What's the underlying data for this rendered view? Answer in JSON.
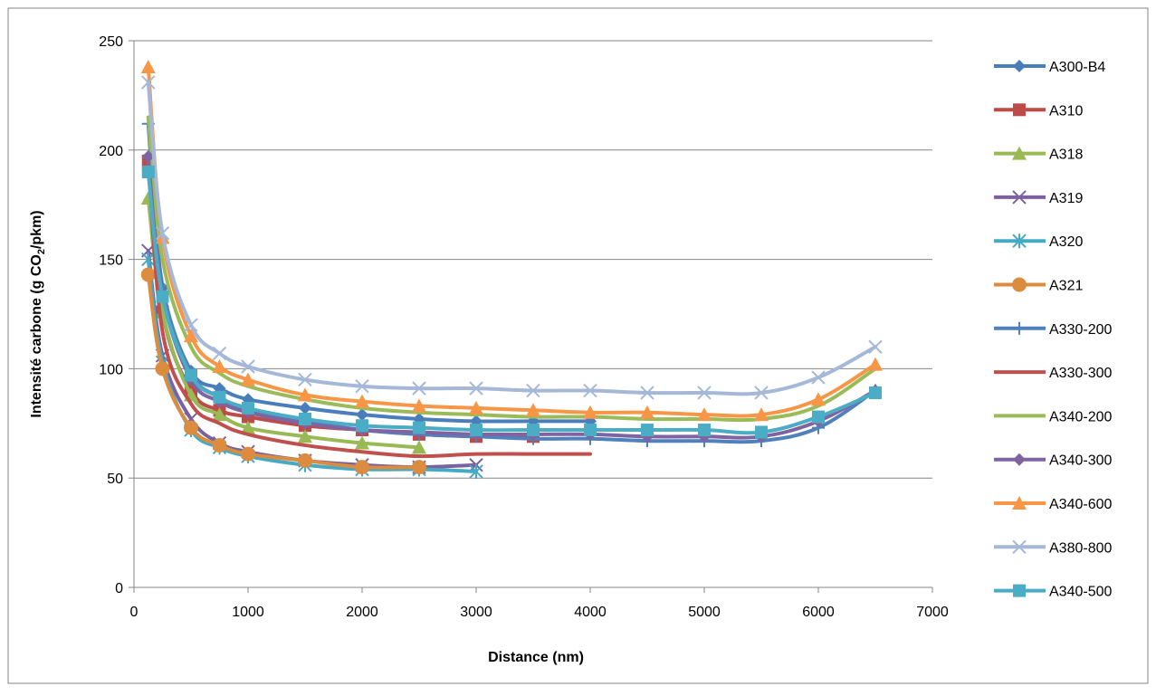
{
  "chart_data": {
    "type": "line",
    "title": "",
    "xlabel": "Distance (nm)",
    "ylabel_main": "Intensité carbone (g CO",
    "ylabel_sub": "2",
    "ylabel_tail": "/pkm)",
    "xlim": [
      0,
      7000
    ],
    "ylim": [
      0,
      250
    ],
    "x_ticks": [
      "0",
      "1000",
      "2000",
      "3000",
      "4000",
      "5000",
      "6000",
      "7000"
    ],
    "y_ticks": [
      "0",
      "50",
      "100",
      "150",
      "200",
      "250"
    ],
    "grid": "horizontal",
    "legend_position": "right",
    "series": [
      {
        "name": "A300-B4",
        "color": "#4a7ebb",
        "marker": "diamond",
        "x": [
          125,
          250,
          500,
          750,
          1000,
          1500,
          2000,
          2500,
          3000,
          3500,
          4000
        ],
        "y": [
          195,
          137,
          99,
          91,
          86,
          82,
          79,
          77,
          76,
          76,
          76
        ]
      },
      {
        "name": "A310",
        "color": "#be4b48",
        "marker": "square",
        "x": [
          125,
          250,
          500,
          750,
          1000,
          1500,
          2000,
          2500,
          3000,
          3500
        ],
        "y": [
          195,
          126,
          90,
          81,
          78,
          74,
          72,
          70,
          69,
          69
        ]
      },
      {
        "name": "A318",
        "color": "#98b954",
        "marker": "triangle",
        "x": [
          125,
          250,
          500,
          750,
          1000,
          1500,
          2000,
          2500
        ],
        "y": [
          178,
          126,
          88,
          79,
          73,
          69,
          66,
          64
        ]
      },
      {
        "name": "A319",
        "color": "#7d60a0",
        "marker": "x",
        "x": [
          125,
          250,
          500,
          750,
          1000,
          1500,
          2000,
          2500,
          3000
        ],
        "y": [
          154,
          106,
          77,
          66,
          62,
          58,
          56,
          55,
          56
        ]
      },
      {
        "name": "A320",
        "color": "#46aac5",
        "marker": "star",
        "x": [
          125,
          250,
          500,
          750,
          1000,
          1500,
          2000,
          2500,
          3000
        ],
        "y": [
          150,
          103,
          72,
          64,
          60,
          56,
          54,
          54,
          53
        ]
      },
      {
        "name": "A321",
        "color": "#dc8c3e",
        "marker": "circle",
        "x": [
          125,
          250,
          500,
          750,
          1000,
          1500,
          2000,
          2500
        ],
        "y": [
          143,
          100,
          73,
          65,
          61,
          58,
          55,
          55
        ]
      },
      {
        "name": "A330-200",
        "color": "#4f81bd",
        "marker": "plus",
        "x": [
          125,
          250,
          500,
          750,
          1000,
          1500,
          2000,
          2500,
          3000,
          3500,
          4000,
          4500,
          5000,
          5500,
          6000,
          6500
        ],
        "y": [
          212,
          138,
          98,
          87,
          81,
          76,
          72,
          70,
          69,
          68,
          68,
          67,
          67,
          67,
          73,
          90
        ]
      },
      {
        "name": "A330-300",
        "color": "#c0504d",
        "marker": "none",
        "x": [
          125,
          250,
          500,
          750,
          1000,
          1500,
          2000,
          2500,
          3000,
          3500,
          4000
        ],
        "y": [
          197,
          117,
          84,
          75,
          70,
          65,
          62,
          60,
          61,
          61,
          61
        ]
      },
      {
        "name": "A340-200",
        "color": "#9bbb59",
        "marker": "none",
        "x": [
          125,
          250,
          500,
          750,
          1000,
          1500,
          2000,
          2500,
          3000,
          3500,
          4000,
          4500,
          5000,
          5500,
          6000,
          6500
        ],
        "y": [
          215,
          150,
          110,
          98,
          92,
          86,
          82,
          80,
          79,
          78,
          78,
          77,
          77,
          77,
          83,
          100
        ]
      },
      {
        "name": "A340-300",
        "color": "#8064a2",
        "marker": "diamond",
        "x": [
          125,
          250,
          500,
          750,
          1000,
          1500,
          2000,
          2500,
          3000,
          3500,
          4000,
          4500,
          5000,
          5500,
          6000,
          6500
        ],
        "y": [
          197,
          134,
          95,
          85,
          80,
          75,
          72,
          71,
          70,
          70,
          70,
          69,
          69,
          69,
          76,
          90
        ]
      },
      {
        "name": "A340-600",
        "color": "#f79646",
        "marker": "triangle",
        "x": [
          125,
          250,
          500,
          750,
          1000,
          1500,
          2000,
          2500,
          3000,
          3500,
          4000,
          4500,
          5000,
          5500,
          6000,
          6500
        ],
        "y": [
          238,
          160,
          115,
          101,
          95,
          88,
          85,
          83,
          82,
          81,
          80,
          80,
          79,
          79,
          86,
          102
        ]
      },
      {
        "name": "A380-800",
        "color": "#a5b8d8",
        "marker": "x",
        "x": [
          125,
          250,
          500,
          750,
          1000,
          1500,
          2000,
          2500,
          3000,
          3500,
          4000,
          4500,
          5000,
          5500,
          6000,
          6500
        ],
        "y": [
          231,
          162,
          120,
          107,
          101,
          95,
          92,
          91,
          91,
          90,
          90,
          89,
          89,
          89,
          96,
          110
        ]
      },
      {
        "name": "A340-500",
        "color": "#4bacc6",
        "marker": "square",
        "x": [
          125,
          250,
          500,
          750,
          1000,
          1500,
          2000,
          2500,
          3000,
          3500,
          4000,
          4500,
          5000,
          5500,
          6000,
          6500
        ],
        "y": [
          190,
          133,
          97,
          87,
          82,
          77,
          74,
          73,
          72,
          72,
          72,
          72,
          72,
          71,
          78,
          89
        ]
      }
    ]
  }
}
